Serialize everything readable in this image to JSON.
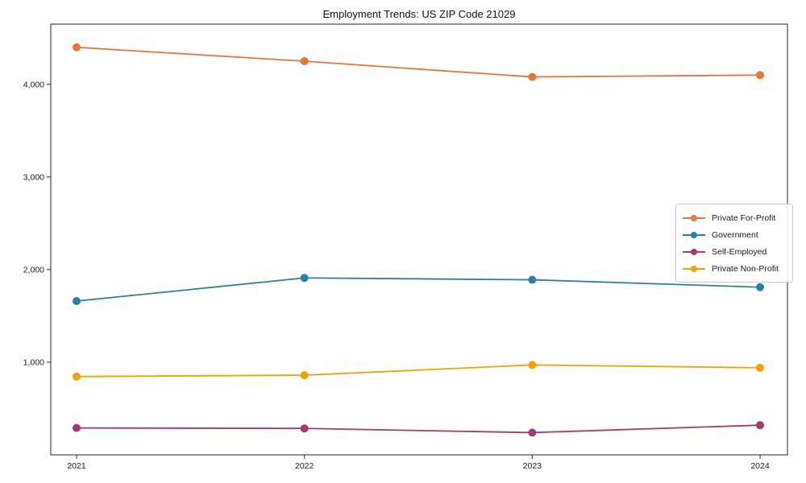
{
  "chart_data": {
    "type": "line",
    "title": "Employment Trends: US ZIP Code 21029",
    "xlabel": "",
    "ylabel": "",
    "categories": [
      "2021",
      "2022",
      "2023",
      "2024"
    ],
    "series": [
      {
        "name": "Private For-Profit",
        "color": "#E8743B",
        "values": [
          4400,
          4250,
          4080,
          4100
        ]
      },
      {
        "name": "Government",
        "color": "#2B7FA3",
        "values": [
          1660,
          1910,
          1890,
          1810
        ]
      },
      {
        "name": "Self-Employed",
        "color": "#A23B72",
        "values": [
          290,
          285,
          240,
          320
        ]
      },
      {
        "name": "Private Non-Profit",
        "color": "#F2A104",
        "values": [
          845,
          860,
          970,
          940
        ]
      }
    ],
    "ylim": [
      0,
      4650
    ],
    "yticks": [
      1000,
      2000,
      3000,
      4000
    ],
    "ytick_labels": [
      "1,000",
      "2,000",
      "3,000",
      "4,000"
    ],
    "legend_position": "center right",
    "grid": false,
    "axis_color": "#262626"
  }
}
